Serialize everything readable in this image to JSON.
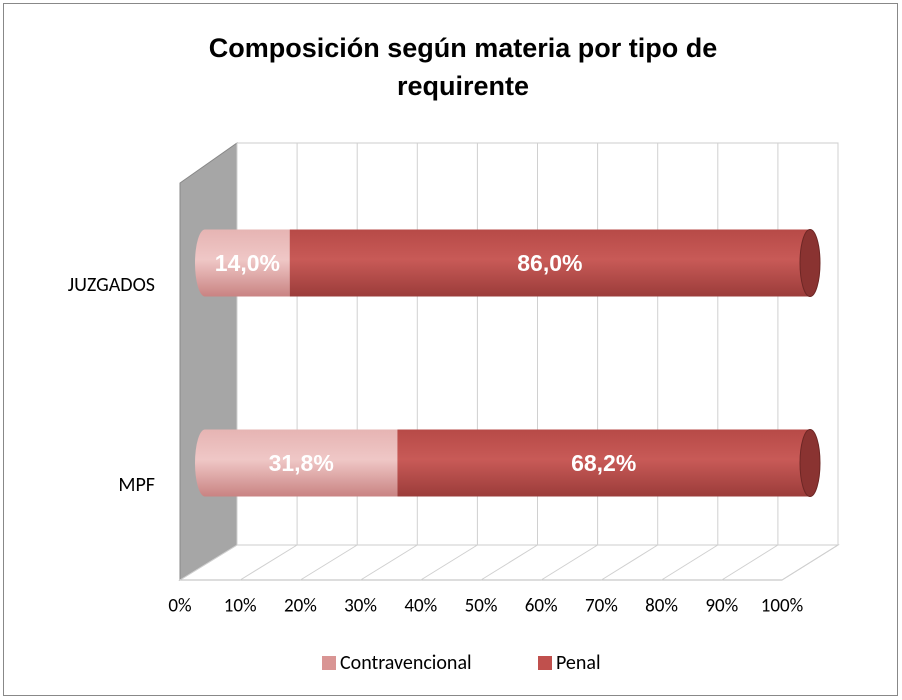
{
  "chart_data": {
    "type": "bar3d_stacked_horizontal",
    "title": "Composición según materia por tipo de requirente",
    "categories": [
      "JUZGADOS",
      "MPF"
    ],
    "series": [
      {
        "name": "Contravencional",
        "color": "#d99594",
        "values": [
          14.0,
          31.8
        ],
        "value_labels": [
          "14,0%",
          "31,8%"
        ]
      },
      {
        "name": "Penal",
        "color": "#c0504d",
        "values": [
          86.0,
          68.2
        ],
        "value_labels": [
          "86,0%",
          "68,2%"
        ]
      }
    ],
    "xlim": [
      0,
      100
    ],
    "xticks": [
      {
        "value": 0,
        "label": "0%"
      },
      {
        "value": 10,
        "label": "10%"
      },
      {
        "value": 20,
        "label": "20%"
      },
      {
        "value": 30,
        "label": "30%"
      },
      {
        "value": 40,
        "label": "40%"
      },
      {
        "value": 50,
        "label": "50%"
      },
      {
        "value": 60,
        "label": "60%"
      },
      {
        "value": 70,
        "label": "70%"
      },
      {
        "value": 80,
        "label": "80%"
      },
      {
        "value": 90,
        "label": "90%"
      },
      {
        "value": 100,
        "label": "100%"
      }
    ],
    "grid": true,
    "legend": "bottom"
  }
}
